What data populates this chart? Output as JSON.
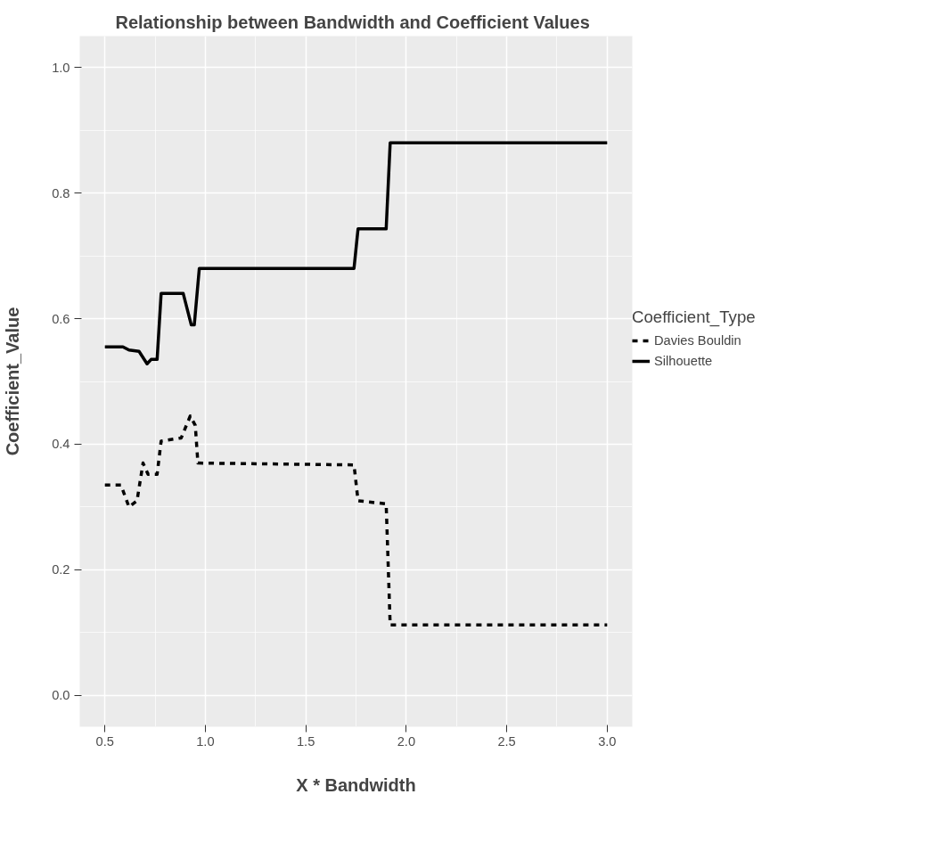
{
  "chart_data": {
    "type": "line",
    "title": "Relationship between Bandwidth and Coefficient Values",
    "xlabel": "X * Bandwidth",
    "ylabel": "Coefficient_Value",
    "legend_title": "Coefficient_Type",
    "series": [
      {
        "name": "Davies Bouldin",
        "color": "#000000",
        "line_style": "dashed",
        "x": [
          0.5,
          0.58,
          0.62,
          0.66,
          0.69,
          0.715,
          0.76,
          0.78,
          0.88,
          0.925,
          0.95,
          0.963,
          1.74,
          1.76,
          1.9,
          1.92,
          3.0
        ],
        "values": [
          0.335,
          0.335,
          0.3,
          0.31,
          0.37,
          0.352,
          0.352,
          0.405,
          0.41,
          0.445,
          0.43,
          0.37,
          0.367,
          0.31,
          0.305,
          0.112,
          0.112
        ]
      },
      {
        "name": "Silhouette",
        "color": "#000000",
        "line_style": "solid",
        "x": [
          0.5,
          0.59,
          0.62,
          0.67,
          0.71,
          0.73,
          0.76,
          0.78,
          0.89,
          0.93,
          0.945,
          0.97,
          1.74,
          1.76,
          1.9,
          1.92,
          3.0
        ],
        "values": [
          0.555,
          0.555,
          0.55,
          0.548,
          0.528,
          0.535,
          0.535,
          0.64,
          0.64,
          0.59,
          0.59,
          0.68,
          0.68,
          0.743,
          0.743,
          0.88,
          0.88
        ]
      }
    ],
    "xlim": [
      0.375,
      3.125
    ],
    "ylim": [
      -0.05,
      1.05
    ],
    "xticks": [
      0.5,
      {
        "value": 1,
        "label": "1.0"
      },
      1.5,
      {
        "value": 2,
        "label": "2.0"
      },
      2.5,
      {
        "value": 3,
        "label": "3.0"
      }
    ],
    "yticks": [
      {
        "value": 0,
        "label": "0.0"
      },
      0.2,
      0.4,
      0.6,
      0.8,
      {
        "value": 1,
        "label": "1.0"
      }
    ],
    "grid": true,
    "legend": "right"
  }
}
